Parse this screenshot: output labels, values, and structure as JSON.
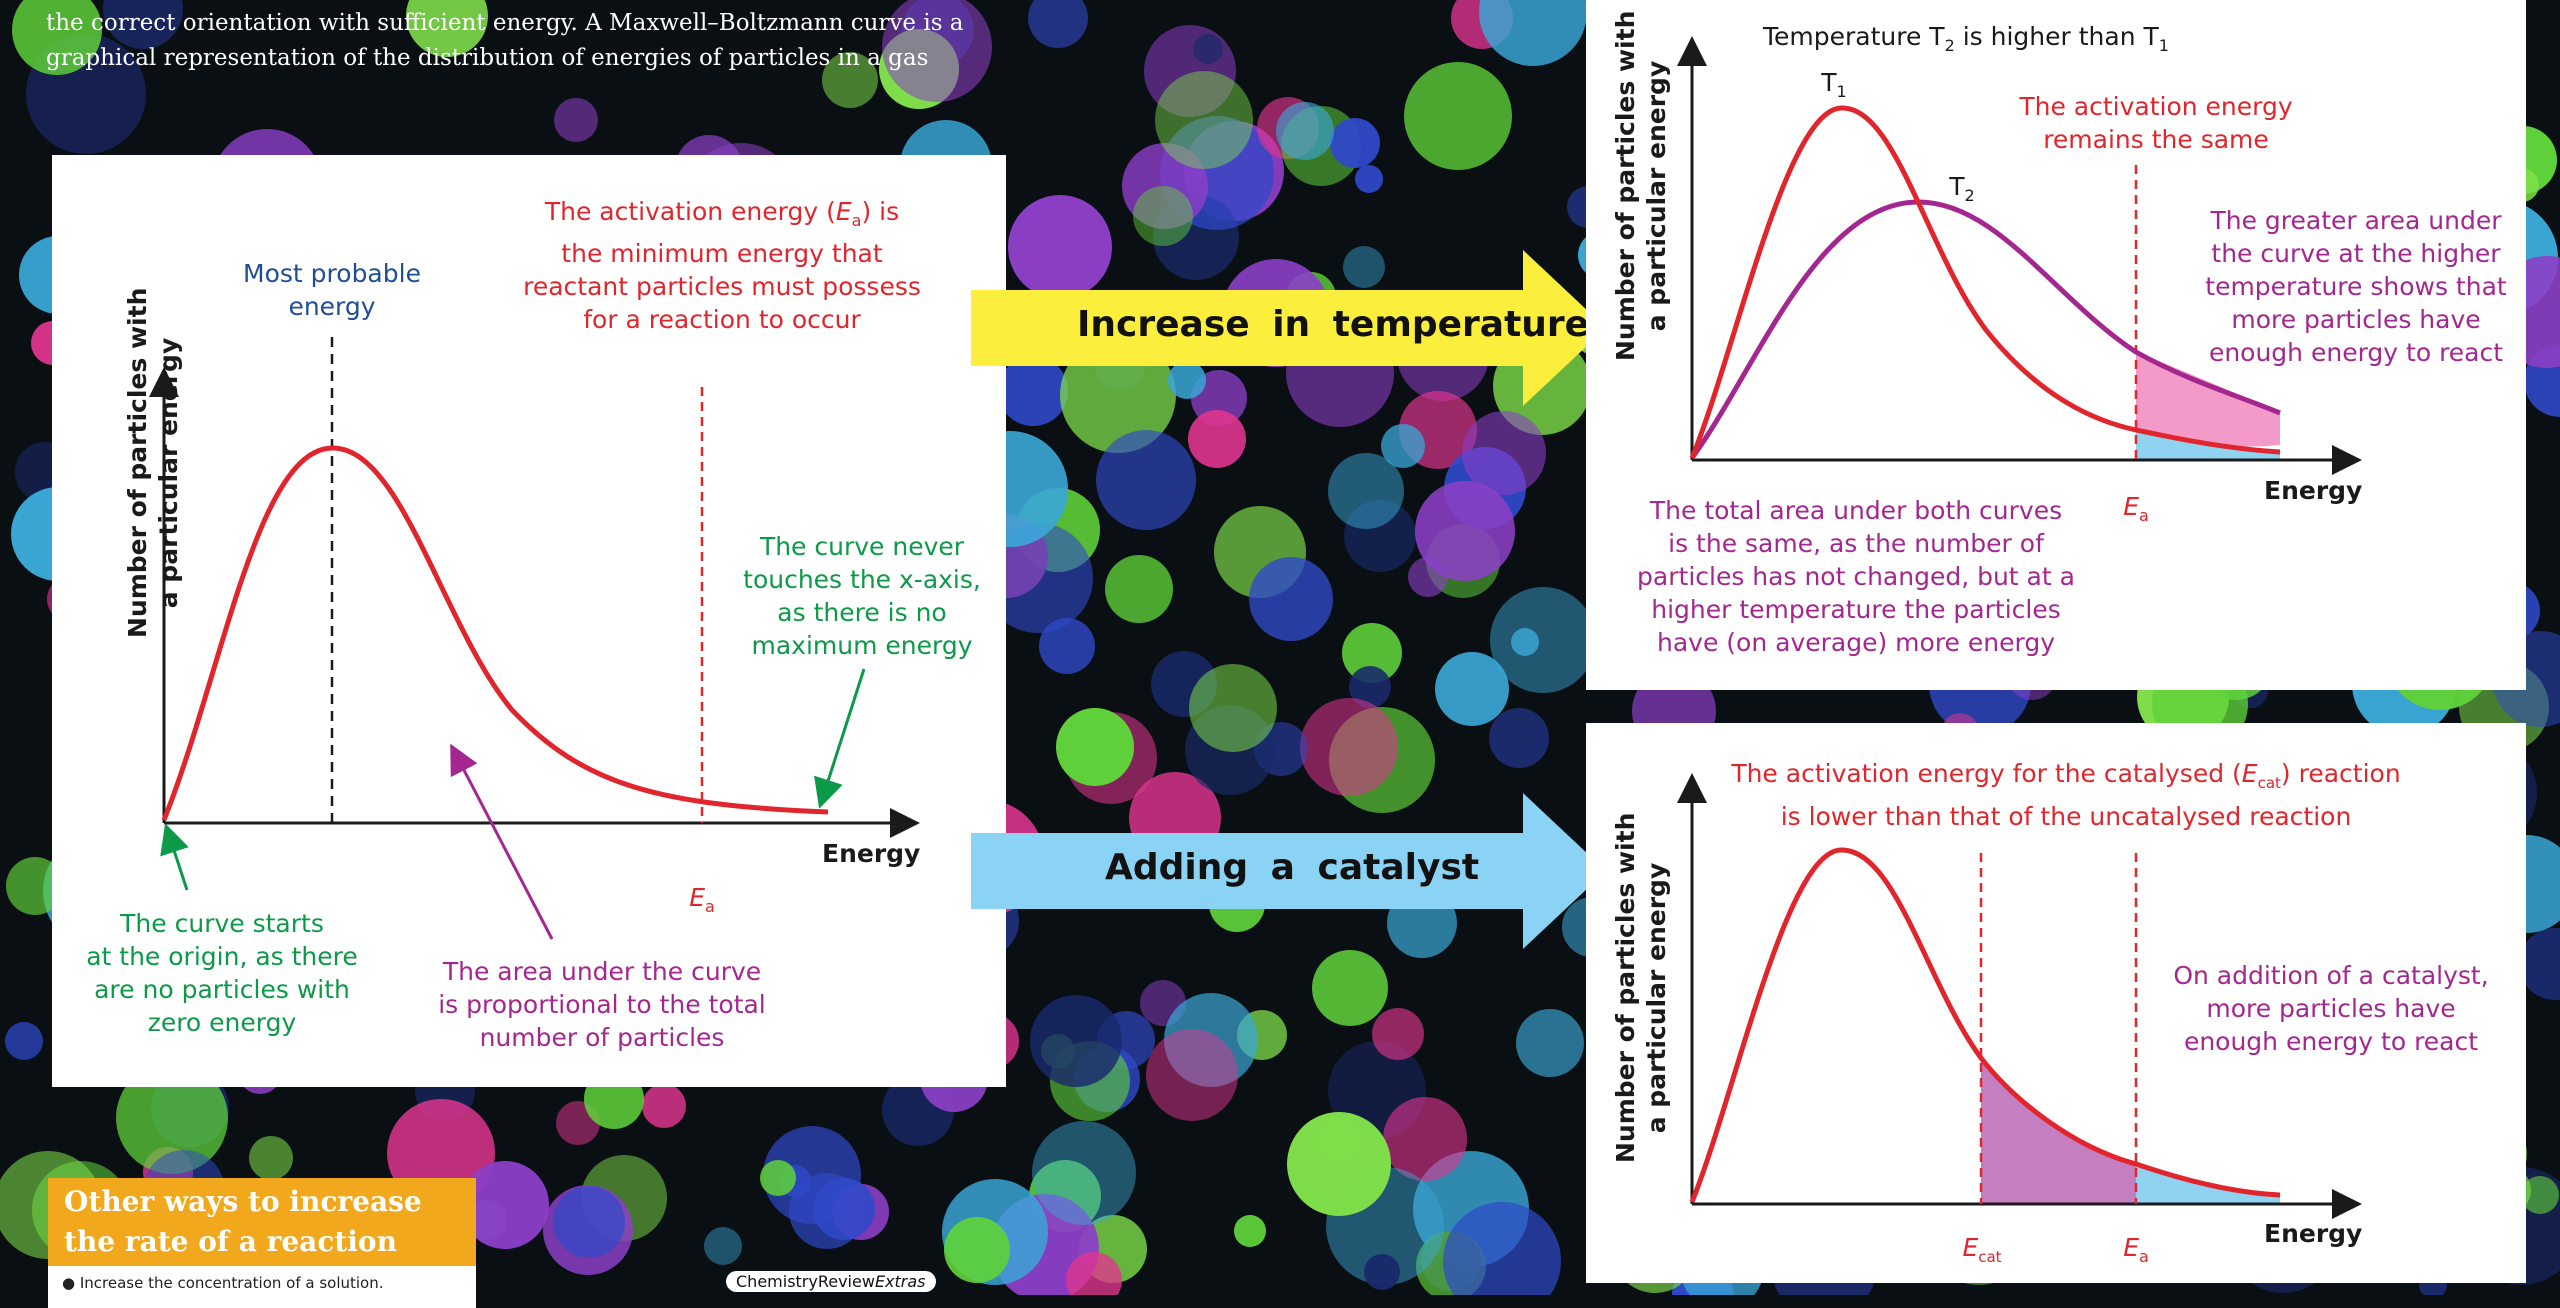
{
  "intro": {
    "line1": "the correct orientation with sufficient energy. A Maxwell–Boltzmann curve is a",
    "line2": "graphical representation of the distribution of energies of particles in a gas"
  },
  "colors": {
    "red": "#e0262c",
    "green": "#0d9a48",
    "purple": "#a4278f",
    "blue_label": "#1f4e93",
    "pink_fill": "#f49ac8",
    "blue_fill": "#8fd3f0",
    "yellow_arrow": "#fbee3c",
    "blue_arrow": "#8ad3f4"
  },
  "main": {
    "ylabel_line1": "Number of particles with",
    "ylabel_line2": "a particular energy",
    "xlabel": "Energy",
    "most_probable_1": "Most probable",
    "most_probable_2": "energy",
    "act_1_pre": "The activation energy (",
    "act_1_E": "E",
    "act_1_sub": "a",
    "act_1_post": ") is",
    "act_2": "the minimum energy that",
    "act_3": "reactant particles must possess",
    "act_4": "for a reaction to occur",
    "never_1": "The curve never",
    "never_2": "touches the x-axis,",
    "never_3": "as there is no",
    "never_4": "maximum energy",
    "ea_E": "E",
    "ea_sub": "a",
    "start_1": "The curve starts",
    "start_2": "at the origin, as there",
    "start_3": "are no particles with",
    "start_4": "zero energy",
    "area_1": "The area under the curve",
    "area_2": "is proportional to the total",
    "area_3": "number of particles"
  },
  "arrows": {
    "temperature": "Increase in temperature",
    "catalyst": "Adding a catalyst"
  },
  "temp_panel": {
    "title_pre": "Temperature T",
    "title_sub1": "2",
    "title_mid": " is higher than T",
    "title_sub2": "1",
    "t1": "T",
    "t1_sub": "1",
    "t2": "T",
    "t2_sub": "2",
    "act_same_1": "The activation energy",
    "act_same_2": "remains the same",
    "greater_1": "The greater area under",
    "greater_2": "the curve at the higher",
    "greater_3": "temperature shows that",
    "greater_4": "more particles have",
    "greater_5": "enough energy to react",
    "total_1": "The total area under both curves",
    "total_2": "is the same, as the number of",
    "total_3": "particles has not changed, but at a",
    "total_4": "higher temperature the particles",
    "total_5": "have (on average) more energy",
    "ylabel_line1": "Number of particles with",
    "ylabel_line2": "a particular energy",
    "xlabel": "Energy",
    "ea_E": "E",
    "ea_sub": "a"
  },
  "cat_panel": {
    "title1_pre": "The activation energy for the catalysed (",
    "title1_E": "E",
    "title1_sub": "cat",
    "title1_post": ") reaction",
    "title2": "is lower than that of the uncatalysed reaction",
    "add_1": "On addition of a catalyst,",
    "add_2": "more particles have",
    "add_3": "enough energy to react",
    "ylabel_line1": "Number of particles with",
    "ylabel_line2": "a particular energy",
    "xlabel": "Energy",
    "ecat_E": "E",
    "ecat_sub": "cat",
    "ea_E": "E",
    "ea_sub": "a"
  },
  "other_box": {
    "title_1": "Other ways to increase",
    "title_2": "the rate of a reaction",
    "item_1": "Increase the concentration of a solution."
  },
  "credit": {
    "main": "ChemistryReview",
    "italic": "Extras"
  }
}
